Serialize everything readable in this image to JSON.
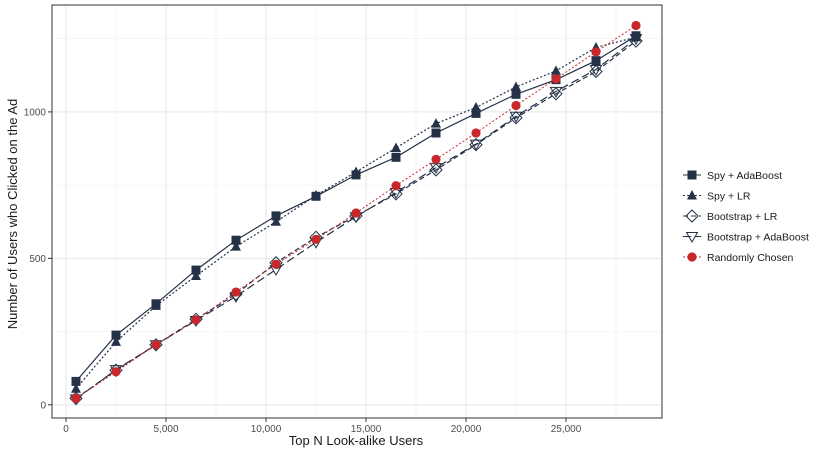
{
  "chart_data": {
    "type": "line",
    "xlabel": "Top N Look-alike Users",
    "ylabel": "Number of Users who Clicked on the Ad",
    "xlim": [
      -700,
      29800
    ],
    "ylim": [
      -45,
      1365
    ],
    "x_ticks": [
      0,
      5000,
      10000,
      15000,
      20000,
      25000
    ],
    "x_tick_labels": [
      "0",
      "5,000",
      "10,000",
      "15,000",
      "20,000",
      "25,000"
    ],
    "y_ticks": [
      0,
      500,
      1000
    ],
    "y_tick_labels": [
      "0",
      "500",
      "1000"
    ],
    "grid": true,
    "legend_position": "right",
    "x": [
      500,
      2500,
      4500,
      6500,
      8500,
      10500,
      12500,
      14500,
      16500,
      18500,
      20500,
      22500,
      24500,
      26500,
      28500
    ],
    "series": [
      {
        "name": "Spy + AdaBoost",
        "marker": "square",
        "line": "solid",
        "color": "#243147",
        "values": [
          80,
          238,
          345,
          460,
          562,
          645,
          712,
          785,
          845,
          928,
          995,
          1060,
          1110,
          1175,
          1260
        ]
      },
      {
        "name": "Spy + LR",
        "marker": "triangle",
        "line": "dotted",
        "color": "#243147",
        "values": [
          55,
          215,
          338,
          440,
          540,
          625,
          715,
          795,
          877,
          960,
          1015,
          1085,
          1140,
          1220,
          1255
        ]
      },
      {
        "name": "Bootstrap + LR",
        "marker": "diamond-open",
        "line": "dashed",
        "color": "#243147",
        "values": [
          22,
          118,
          205,
          292,
          378,
          485,
          572,
          645,
          720,
          802,
          888,
          980,
          1062,
          1138,
          1242
        ]
      },
      {
        "name": "Bootstrap + AdaBoost",
        "marker": "triangle-down-open",
        "line": "longdash",
        "color": "#243147",
        "values": [
          20,
          120,
          205,
          288,
          370,
          462,
          555,
          642,
          725,
          810,
          890,
          985,
          1070,
          1145,
          1250
        ]
      },
      {
        "name": "Randomly Chosen",
        "marker": "circle",
        "line": "dotted",
        "color": "#c8282c",
        "values": [
          22,
          113,
          205,
          290,
          385,
          480,
          565,
          655,
          748,
          838,
          928,
          1022,
          1113,
          1205,
          1295
        ]
      }
    ]
  }
}
